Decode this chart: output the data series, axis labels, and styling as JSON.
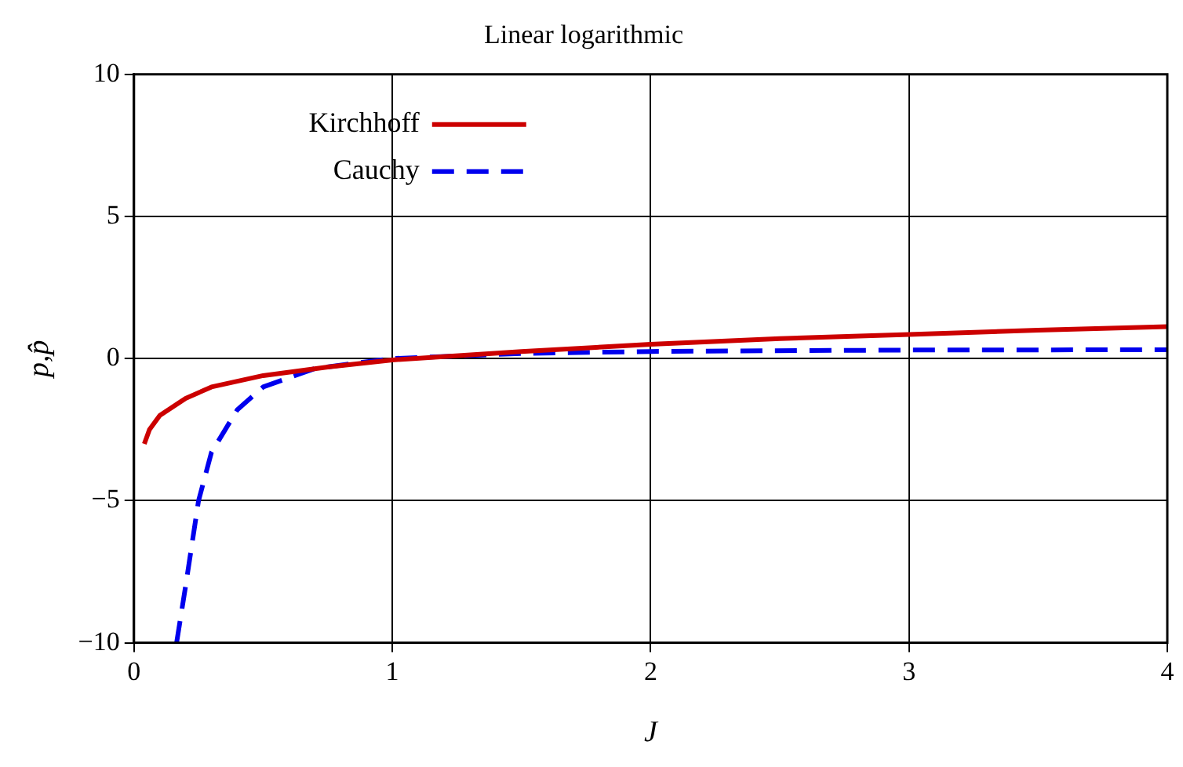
{
  "chart_data": {
    "type": "line",
    "title": "Linear logarithmic",
    "xlabel": "J",
    "ylabel": "p,p̂",
    "xlim": [
      0,
      4
    ],
    "xticks": [
      0,
      1,
      2,
      3,
      4
    ],
    "ylim": [
      -10,
      10
    ],
    "yticks": [
      -10,
      -5,
      0,
      5,
      10
    ],
    "grid": true,
    "legend": "top left",
    "marker": "none",
    "series": [
      {
        "name": "Kirchhoff",
        "color": "#cc0000",
        "line_style": "solid",
        "x": [
          0.04,
          0.06,
          0.1,
          0.2,
          0.3,
          0.5,
          0.75,
          1,
          1.5,
          2,
          2.5,
          3,
          3.5,
          4
        ],
        "values": [
          -3,
          -2.5,
          -2,
          -1.4,
          -1,
          -0.6,
          -0.3,
          -0.05,
          0.25,
          0.5,
          0.7,
          0.85,
          1,
          1.12
        ]
      },
      {
        "name": "Cauchy",
        "color": "#0000ee",
        "line_style": "dashed",
        "x": [
          0.165,
          0.2,
          0.25,
          0.3,
          0.4,
          0.5,
          0.7,
          1,
          1.5,
          2,
          3,
          4
        ],
        "values": [
          -10,
          -8,
          -5,
          -3.3,
          -1.8,
          -1,
          -0.35,
          0,
          0.18,
          0.25,
          0.3,
          0.31
        ]
      }
    ]
  }
}
